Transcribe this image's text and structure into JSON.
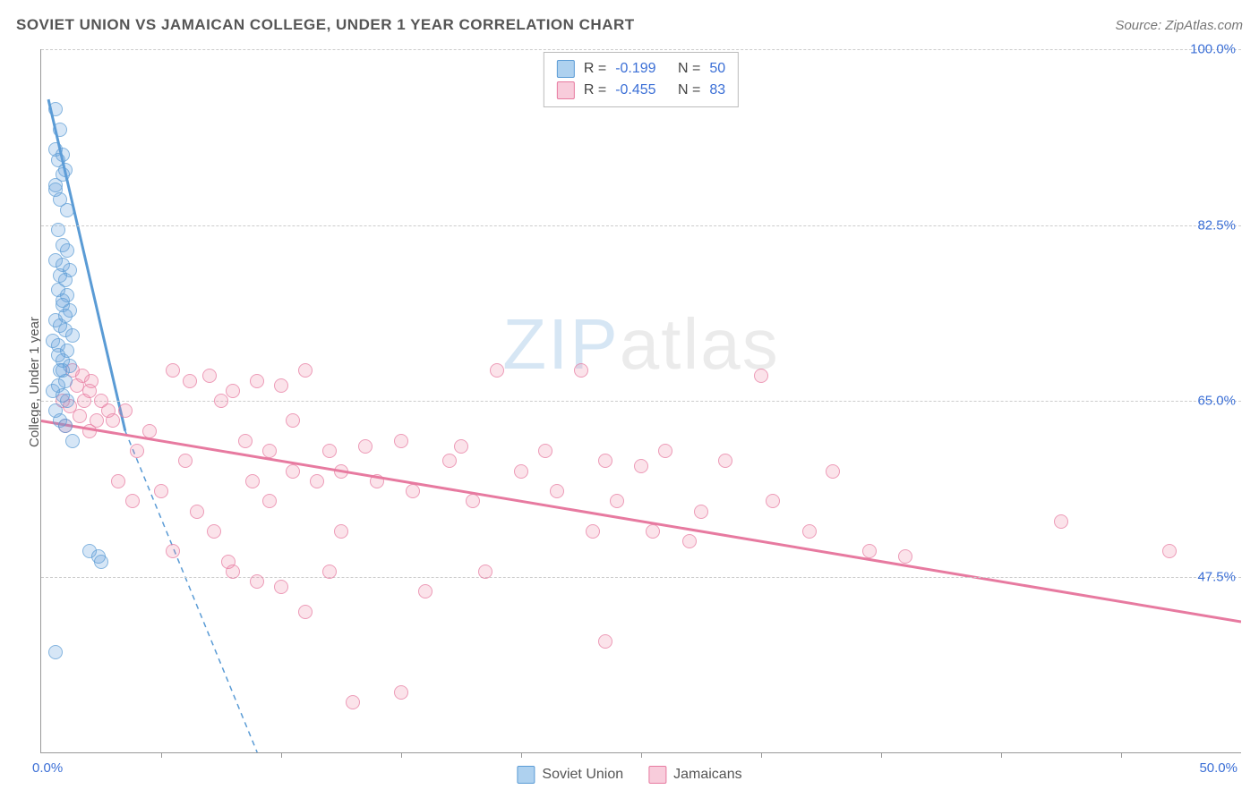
{
  "header": {
    "title": "SOVIET UNION VS JAMAICAN COLLEGE, UNDER 1 YEAR CORRELATION CHART",
    "source": "Source: ZipAtlas.com"
  },
  "stats": {
    "series1": {
      "r_label": "R =",
      "r_value": "-0.199",
      "n_label": "N =",
      "n_value": "50"
    },
    "series2": {
      "r_label": "R =",
      "r_value": "-0.455",
      "n_label": "N =",
      "n_value": "83"
    }
  },
  "legend": {
    "series1": "Soviet Union",
    "series2": "Jamaicans"
  },
  "axes": {
    "y_label": "College, Under 1 year",
    "y_ticks": [
      "100.0%",
      "82.5%",
      "65.0%",
      "47.5%"
    ],
    "y_tick_values": [
      100.0,
      82.5,
      65.0,
      47.5
    ],
    "x_start": "0.0%",
    "x_end": "50.0%",
    "x_range": [
      0,
      50
    ],
    "y_range": [
      30,
      100
    ],
    "x_tick_values": [
      5,
      10,
      15,
      20,
      25,
      30,
      35,
      40,
      45
    ],
    "grid_color": "#cccccc",
    "axis_color": "#999999"
  },
  "colors": {
    "blue_fill": "rgba(99,160,220,0.35)",
    "blue_stroke": "#5a9bd5",
    "pink_fill": "rgba(236,128,161,0.30)",
    "pink_stroke": "#e77aa0",
    "tick_text": "#3b6fd6"
  },
  "trend_lines": {
    "blue": {
      "x1": 0.3,
      "y1": 95,
      "x2": 3.5,
      "y2": 62,
      "dash_x2": 9,
      "dash_y2": 30
    },
    "pink": {
      "x1": 0,
      "y1": 63,
      "x2": 50,
      "y2": 43
    }
  },
  "watermark": {
    "zip": "ZIP",
    "atlas": "atlas"
  },
  "points": {
    "blue": [
      [
        0.6,
        94
      ],
      [
        0.8,
        92
      ],
      [
        0.6,
        90
      ],
      [
        0.9,
        89.5
      ],
      [
        0.7,
        89
      ],
      [
        1.0,
        88
      ],
      [
        0.9,
        87.5
      ],
      [
        0.6,
        86.5
      ],
      [
        0.8,
        85
      ],
      [
        1.1,
        84
      ],
      [
        0.7,
        82
      ],
      [
        0.9,
        80.5
      ],
      [
        1.1,
        80
      ],
      [
        0.6,
        79
      ],
      [
        0.9,
        78.5
      ],
      [
        1.2,
        78
      ],
      [
        0.8,
        77.5
      ],
      [
        1.0,
        77
      ],
      [
        0.7,
        76
      ],
      [
        1.1,
        75.5
      ],
      [
        0.9,
        74.5
      ],
      [
        0.6,
        73
      ],
      [
        1.0,
        72
      ],
      [
        1.3,
        71.5
      ],
      [
        0.7,
        70.5
      ],
      [
        1.1,
        70
      ],
      [
        0.9,
        69
      ],
      [
        1.2,
        68.5
      ],
      [
        0.8,
        68
      ],
      [
        1.0,
        67
      ],
      [
        0.7,
        66.5
      ],
      [
        0.5,
        66
      ],
      [
        0.9,
        65.5
      ],
      [
        1.1,
        65
      ],
      [
        0.6,
        64
      ],
      [
        0.8,
        63
      ],
      [
        1.0,
        62.5
      ],
      [
        1.3,
        61
      ],
      [
        2.0,
        50
      ],
      [
        2.4,
        49.5
      ],
      [
        2.5,
        49
      ],
      [
        0.6,
        40
      ],
      [
        0.9,
        75
      ],
      [
        1.2,
        74
      ],
      [
        0.8,
        72.5
      ],
      [
        0.5,
        71
      ],
      [
        1.0,
        73.5
      ],
      [
        0.7,
        69.5
      ],
      [
        0.9,
        68
      ],
      [
        0.6,
        86
      ]
    ],
    "pink": [
      [
        1.3,
        68
      ],
      [
        1.7,
        67.5
      ],
      [
        2.1,
        67
      ],
      [
        1.5,
        66.5
      ],
      [
        2.0,
        66
      ],
      [
        0.9,
        65
      ],
      [
        1.8,
        65
      ],
      [
        2.5,
        65
      ],
      [
        1.2,
        64.5
      ],
      [
        2.8,
        64
      ],
      [
        3.5,
        64
      ],
      [
        1.6,
        63.5
      ],
      [
        2.3,
        63
      ],
      [
        3.0,
        63
      ],
      [
        1.0,
        62.5
      ],
      [
        2.0,
        62
      ],
      [
        5.5,
        68
      ],
      [
        6.2,
        67
      ],
      [
        7.0,
        67.5
      ],
      [
        8.0,
        66
      ],
      [
        7.5,
        65
      ],
      [
        9.0,
        67
      ],
      [
        10.0,
        66.5
      ],
      [
        10.5,
        63
      ],
      [
        11.0,
        68
      ],
      [
        8.5,
        61
      ],
      [
        9.5,
        60
      ],
      [
        12.0,
        60
      ],
      [
        12.5,
        58
      ],
      [
        11.5,
        57
      ],
      [
        13.5,
        60.5
      ],
      [
        14.0,
        57
      ],
      [
        15.0,
        61
      ],
      [
        15.5,
        56
      ],
      [
        17.0,
        59
      ],
      [
        17.5,
        60.5
      ],
      [
        18.0,
        55
      ],
      [
        19.0,
        68
      ],
      [
        20.0,
        58
      ],
      [
        21.0,
        60
      ],
      [
        21.5,
        56
      ],
      [
        22.5,
        68
      ],
      [
        23.0,
        52
      ],
      [
        23.5,
        59
      ],
      [
        24.0,
        55
      ],
      [
        25.0,
        58.5
      ],
      [
        25.5,
        52
      ],
      [
        26.0,
        60
      ],
      [
        27.0,
        51
      ],
      [
        27.5,
        54
      ],
      [
        28.5,
        59
      ],
      [
        30.0,
        67.5
      ],
      [
        30.5,
        55
      ],
      [
        32.0,
        52
      ],
      [
        33.0,
        58
      ],
      [
        34.5,
        50
      ],
      [
        36.0,
        49.5
      ],
      [
        42.5,
        53
      ],
      [
        47.0,
        50
      ],
      [
        3.2,
        57
      ],
      [
        4.0,
        60
      ],
      [
        5.0,
        56
      ],
      [
        6.5,
        54
      ],
      [
        7.2,
        52
      ],
      [
        8.0,
        48
      ],
      [
        9.0,
        47
      ],
      [
        10.0,
        46.5
      ],
      [
        11.0,
        44
      ],
      [
        12.0,
        48
      ],
      [
        6.0,
        59
      ],
      [
        4.5,
        62
      ],
      [
        3.8,
        55
      ],
      [
        5.5,
        50
      ],
      [
        7.8,
        49
      ],
      [
        13.0,
        35
      ],
      [
        15.0,
        36
      ],
      [
        23.5,
        41
      ],
      [
        18.5,
        48
      ],
      [
        16.0,
        46
      ],
      [
        9.5,
        55
      ],
      [
        12.5,
        52
      ],
      [
        10.5,
        58
      ],
      [
        8.8,
        57
      ]
    ]
  }
}
